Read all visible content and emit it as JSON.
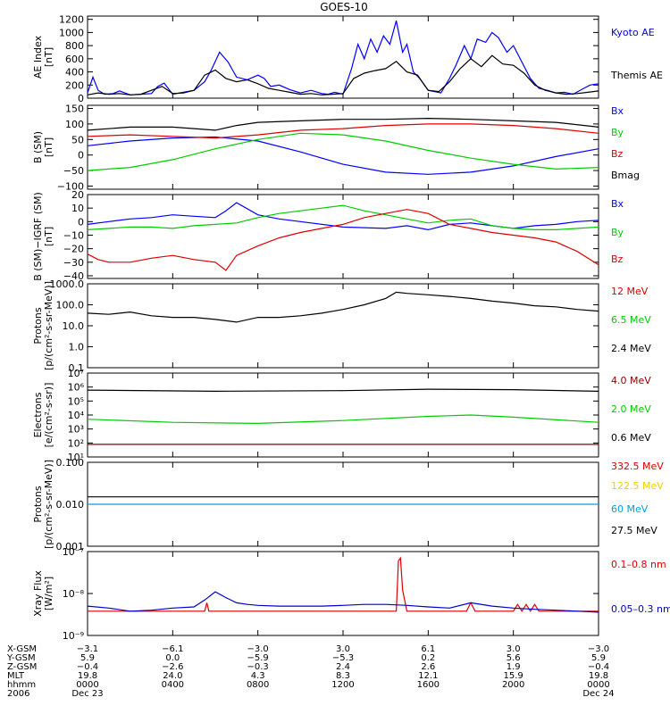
{
  "title": "GOES-10",
  "chart_data": [
    {
      "type": "line",
      "ylabel": "AE Index\n[nT]",
      "yscale": "linear",
      "ylim": [
        0,
        1250
      ],
      "yticks": [
        0,
        200,
        400,
        600,
        800,
        1000,
        1200
      ],
      "ytick_labels": [
        "0",
        "200",
        "400",
        "600",
        "800",
        "1000",
        "1200"
      ],
      "series": [
        {
          "name": "Kyoto AE",
          "color": "#0000ff",
          "x": [
            0,
            0.25,
            0.5,
            0.8,
            1.2,
            1.5,
            2.0,
            2.5,
            3.0,
            3.3,
            3.6,
            4.0,
            4.5,
            5.0,
            5.5,
            5.8,
            6.2,
            6.6,
            7.0,
            7.5,
            8.0,
            8.3,
            8.6,
            9.0,
            9.5,
            10.0,
            10.5,
            11.0,
            11.3,
            11.6,
            12.0,
            12.4,
            12.7,
            13.0,
            13.3,
            13.6,
            13.9,
            14.2,
            14.5,
            14.8,
            15.0,
            15.3,
            15.6,
            16.0,
            16.3,
            16.6,
            17.0,
            17.3,
            17.7,
            18.0,
            18.3,
            18.7,
            19.0,
            19.3,
            19.7,
            20.0,
            20.4,
            20.8,
            21.2,
            21.6,
            22.0,
            22.4,
            22.8,
            23.2,
            23.6,
            24.0
          ],
          "y": [
            80,
            320,
            120,
            60,
            70,
            110,
            50,
            60,
            70,
            180,
            230,
            60,
            90,
            120,
            250,
            420,
            700,
            550,
            320,
            280,
            350,
            300,
            180,
            200,
            130,
            80,
            120,
            70,
            60,
            90,
            60,
            450,
            820,
            600,
            900,
            700,
            950,
            820,
            1180,
            700,
            820,
            400,
            300,
            120,
            100,
            80,
            300,
            500,
            800,
            600,
            900,
            850,
            1000,
            920,
            700,
            800,
            550,
            300,
            150,
            120,
            80,
            90,
            60,
            130,
            200,
            220
          ]
        },
        {
          "name": "Themis AE",
          "color": "#000000",
          "x": [
            0,
            0.5,
            1.0,
            1.5,
            2.0,
            2.5,
            3.0,
            3.5,
            4.0,
            4.5,
            5.0,
            5.5,
            6.0,
            6.5,
            7.0,
            7.5,
            8.0,
            8.5,
            9.0,
            9.5,
            10.0,
            10.5,
            11.0,
            11.5,
            12.0,
            12.5,
            13.0,
            13.5,
            14.0,
            14.5,
            15.0,
            15.5,
            16.0,
            16.5,
            17.0,
            17.5,
            18.0,
            18.5,
            19.0,
            19.5,
            20.0,
            20.5,
            21.0,
            21.5,
            22.0,
            22.5,
            23.0,
            23.5,
            24.0
          ],
          "y": [
            50,
            80,
            60,
            70,
            50,
            60,
            120,
            180,
            70,
            80,
            120,
            350,
            430,
            300,
            250,
            280,
            220,
            150,
            120,
            90,
            60,
            70,
            50,
            60,
            70,
            300,
            380,
            420,
            450,
            560,
            400,
            350,
            120,
            100,
            250,
            450,
            600,
            480,
            650,
            520,
            500,
            380,
            200,
            120,
            80,
            60,
            70,
            90,
            110
          ]
        }
      ]
    },
    {
      "type": "line",
      "ylabel": "B (SM)\n[nT]",
      "yscale": "linear",
      "ylim": [
        -110,
        160
      ],
      "yticks": [
        -100,
        -50,
        0,
        50,
        100,
        150
      ],
      "ytick_labels": [
        "−100",
        "−50",
        "0",
        "50",
        "100",
        "150"
      ],
      "series": [
        {
          "name": "Bx",
          "color": "#0000ff",
          "x": [
            0,
            2,
            4,
            6,
            8,
            10,
            12,
            14,
            16,
            18,
            20,
            22,
            24
          ],
          "y": [
            30,
            45,
            55,
            58,
            45,
            10,
            -30,
            -55,
            -62,
            -55,
            -35,
            -5,
            20
          ]
        },
        {
          "name": "By",
          "color": "#00cc00",
          "x": [
            0,
            2,
            4,
            6,
            8,
            10,
            12,
            14,
            16,
            18,
            20,
            22,
            24
          ],
          "y": [
            -50,
            -40,
            -15,
            20,
            50,
            70,
            65,
            45,
            15,
            -10,
            -30,
            -45,
            -40
          ]
        },
        {
          "name": "Bz",
          "color": "#dd0000",
          "x": [
            0,
            2,
            4,
            6,
            8,
            10,
            12,
            14,
            16,
            18,
            20,
            22,
            24
          ],
          "y": [
            60,
            65,
            60,
            55,
            65,
            80,
            85,
            95,
            100,
            100,
            95,
            85,
            70
          ]
        },
        {
          "name": "Bmag",
          "color": "#000000",
          "x": [
            0,
            2,
            4,
            6,
            7,
            8,
            10,
            12,
            14,
            16,
            18,
            20,
            22,
            24
          ],
          "y": [
            80,
            90,
            90,
            80,
            95,
            105,
            110,
            115,
            115,
            118,
            115,
            110,
            105,
            90
          ]
        }
      ]
    },
    {
      "type": "line",
      "ylabel": "B (SM)−IGRF (SM)\n[nT]",
      "yscale": "linear",
      "ylim": [
        -42,
        20
      ],
      "yticks": [
        -40,
        -30,
        -20,
        -10,
        0,
        10,
        20
      ],
      "ytick_labels": [
        "−40",
        "−30",
        "−20",
        "−10",
        "0",
        "10",
        "20"
      ],
      "series": [
        {
          "name": "Bx",
          "color": "#0000ff",
          "x": [
            0,
            1,
            2,
            3,
            4,
            5,
            6,
            6.5,
            7,
            8,
            9,
            10,
            12,
            14,
            15,
            16,
            17,
            18,
            19,
            20,
            21,
            22,
            23,
            24
          ],
          "y": [
            -2,
            0,
            2,
            3,
            5,
            4,
            3,
            8,
            14,
            5,
            2,
            0,
            -4,
            -5,
            -3,
            -6,
            -2,
            -1,
            -3,
            -5,
            -3,
            -2,
            0,
            1
          ]
        },
        {
          "name": "By",
          "color": "#00cc00",
          "x": [
            0,
            1,
            2,
            3,
            4,
            5,
            6,
            7,
            8,
            9,
            10,
            11,
            12,
            13,
            14,
            15,
            16,
            17,
            18,
            19,
            20,
            21,
            22,
            23,
            24
          ],
          "y": [
            -6,
            -5,
            -4,
            -4,
            -5,
            -3,
            -2,
            -1,
            3,
            6,
            8,
            10,
            12,
            8,
            5,
            2,
            -1,
            1,
            2,
            -3,
            -5,
            -6,
            -6,
            -5,
            -4
          ]
        },
        {
          "name": "Bz",
          "color": "#dd0000",
          "x": [
            0,
            0.5,
            1,
            2,
            3,
            4,
            5,
            6,
            6.5,
            7,
            8,
            9,
            10,
            11,
            12,
            13,
            14,
            15,
            16,
            17,
            18,
            19,
            20,
            21,
            22,
            23,
            24
          ],
          "y": [
            -24,
            -28,
            -30,
            -30,
            -27,
            -25,
            -28,
            -30,
            -36,
            -25,
            -18,
            -12,
            -8,
            -5,
            -2,
            3,
            6,
            9,
            6,
            -2,
            -5,
            -8,
            -10,
            -12,
            -15,
            -22,
            -32
          ]
        }
      ]
    },
    {
      "type": "line",
      "ylabel": "Protons\n[p/(cm²-s-sr-MeV)]",
      "yscale": "log",
      "ylim": [
        0.1,
        1000
      ],
      "yticks": [
        0.1,
        1,
        10,
        100,
        1000
      ],
      "ytick_labels": [
        "0.1",
        "1.0",
        "10.0",
        "100.0",
        "1000.0"
      ],
      "series": [
        {
          "name": "12 MeV",
          "color": "#dd0000",
          "x": [],
          "y": []
        },
        {
          "name": "6.5 MeV",
          "color": "#00cc00",
          "x": [],
          "y": []
        },
        {
          "name": "2.4 MeV",
          "color": "#000000",
          "x": [
            0,
            1,
            2,
            3,
            4,
            5,
            6,
            7,
            8,
            9,
            10,
            11,
            12,
            13,
            14,
            14.5,
            15,
            16,
            17,
            18,
            19,
            20,
            21,
            22,
            23,
            24
          ],
          "y": [
            40,
            35,
            45,
            30,
            25,
            25,
            20,
            15,
            25,
            25,
            30,
            40,
            60,
            100,
            200,
            400,
            350,
            300,
            250,
            200,
            150,
            120,
            90,
            80,
            60,
            50
          ]
        }
      ]
    },
    {
      "type": "line",
      "ylabel": "Electrons\n[e/(cm²-s-sr)]",
      "yscale": "log",
      "ylim": [
        10,
        10000000
      ],
      "yticks": [
        10,
        100,
        1000,
        10000,
        100000,
        1000000,
        10000000
      ],
      "ytick_labels": [
        "10¹",
        "10²",
        "10³",
        "10⁴",
        "10⁵",
        "10⁶",
        "10⁷"
      ],
      "series": [
        {
          "name": "4.0 MeV",
          "color": "#8b0000",
          "x": [
            0,
            24
          ],
          "y": [
            80,
            80
          ]
        },
        {
          "name": "2.0 MeV",
          "color": "#00cc00",
          "x": [
            0,
            4,
            8,
            12,
            16,
            18,
            20,
            24
          ],
          "y": [
            5000,
            3000,
            2500,
            4000,
            8000,
            10000,
            7000,
            3000
          ]
        },
        {
          "name": "0.6 MeV",
          "color": "#000000",
          "x": [
            0,
            6,
            12,
            16,
            20,
            24
          ],
          "y": [
            600000,
            500000,
            550000,
            700000,
            650000,
            500000
          ]
        }
      ]
    },
    {
      "type": "line",
      "ylabel": "Protons\n[p/(cm²-s-sr-MeV)]",
      "yscale": "log",
      "ylim": [
        0.001,
        0.1
      ],
      "yticks": [
        0.001,
        0.01,
        0.1
      ],
      "ytick_labels": [
        "0.001",
        "0.010",
        "0.100"
      ],
      "series": [
        {
          "name": "332.5 MeV",
          "color": "#dd0000",
          "x": [],
          "y": []
        },
        {
          "name": "122.5 MeV",
          "color": "#f0d000",
          "x": [],
          "y": []
        },
        {
          "name": "60 MeV",
          "color": "#00a0e0",
          "x": [
            0,
            24
          ],
          "y": [
            0.01,
            0.01
          ]
        },
        {
          "name": "27.5 MeV",
          "color": "#000000",
          "x": [
            0,
            24
          ],
          "y": [
            0.015,
            0.015
          ]
        }
      ]
    },
    {
      "type": "line",
      "ylabel": "Xray Flux\n[W/m²]",
      "yscale": "log",
      "ylim": [
        1e-09,
        1e-07
      ],
      "yticks": [
        1e-09,
        1e-08,
        1e-07
      ],
      "ytick_labels": [
        "10⁻⁹",
        "10⁻⁸",
        "10⁻⁷"
      ],
      "series": [
        {
          "name": "0.1–0.8 nm",
          "color": "#dd0000",
          "x": [
            0,
            5.5,
            5.6,
            5.7,
            6.0,
            14.5,
            14.6,
            14.7,
            14.8,
            15.0,
            15.2,
            17.8,
            18.0,
            18.2,
            18.4,
            20.0,
            20.2,
            20.4,
            20.6,
            20.8,
            21.0,
            21.2,
            24
          ],
          "y": [
            3.8e-09,
            3.8e-09,
            6e-09,
            3.8e-09,
            3.8e-09,
            3.8e-09,
            6e-08,
            7e-08,
            1.2e-08,
            3.8e-09,
            3.8e-09,
            3.8e-09,
            6e-09,
            3.8e-09,
            3.8e-09,
            3.8e-09,
            5.5e-09,
            3.8e-09,
            5.5e-09,
            3.8e-09,
            5.5e-09,
            3.8e-09,
            3.8e-09
          ]
        },
        {
          "name": "0.05–0.3 nm",
          "color": "#0000cc",
          "x": [
            0,
            1,
            2,
            3,
            4,
            5,
            5.5,
            6,
            6.5,
            7,
            7.5,
            8,
            9,
            10,
            11,
            12,
            13,
            14,
            15,
            16,
            17,
            18,
            19,
            20,
            21,
            22,
            23,
            24
          ],
          "y": [
            5e-09,
            4.5e-09,
            3.8e-09,
            4e-09,
            4.5e-09,
            4.8e-09,
            7e-09,
            1.1e-08,
            8e-09,
            6e-09,
            5.5e-09,
            5.2e-09,
            5e-09,
            5e-09,
            5e-09,
            5.2e-09,
            5.5e-09,
            5.5e-09,
            5.2e-09,
            4.8e-09,
            4.5e-09,
            6e-09,
            5e-09,
            4.5e-09,
            4.2e-09,
            4e-09,
            3.8e-09,
            3.6e-09
          ]
        }
      ]
    }
  ],
  "x_axis": {
    "range": [
      0,
      24
    ],
    "tick_positions": [
      0,
      4,
      8,
      12,
      16,
      20,
      24
    ],
    "row_labels": [
      "X-GSM",
      "Y-GSM",
      "Z-GSM",
      "MLT",
      "hhmm",
      "2006"
    ],
    "rows": [
      [
        "−3.1",
        "−6.1",
        "−3.0",
        "3.0",
        "6.1",
        "3.0",
        "−3.0"
      ],
      [
        "5.9",
        "0.0",
        "−5.9",
        "−5.3",
        "0.2",
        "5.6",
        "5.9"
      ],
      [
        "−0.4",
        "−2.6",
        "−0.3",
        "2.4",
        "2.6",
        "1.9",
        "−0.4"
      ],
      [
        "19.8",
        "24.0",
        "4.3",
        "8.3",
        "12.1",
        "15.9",
        "19.8"
      ],
      [
        "0000",
        "0400",
        "0800",
        "1200",
        "1600",
        "2000",
        "0000"
      ],
      [
        "Dec 23",
        "",
        "",
        "",
        "",
        "",
        "Dec 24"
      ]
    ]
  }
}
